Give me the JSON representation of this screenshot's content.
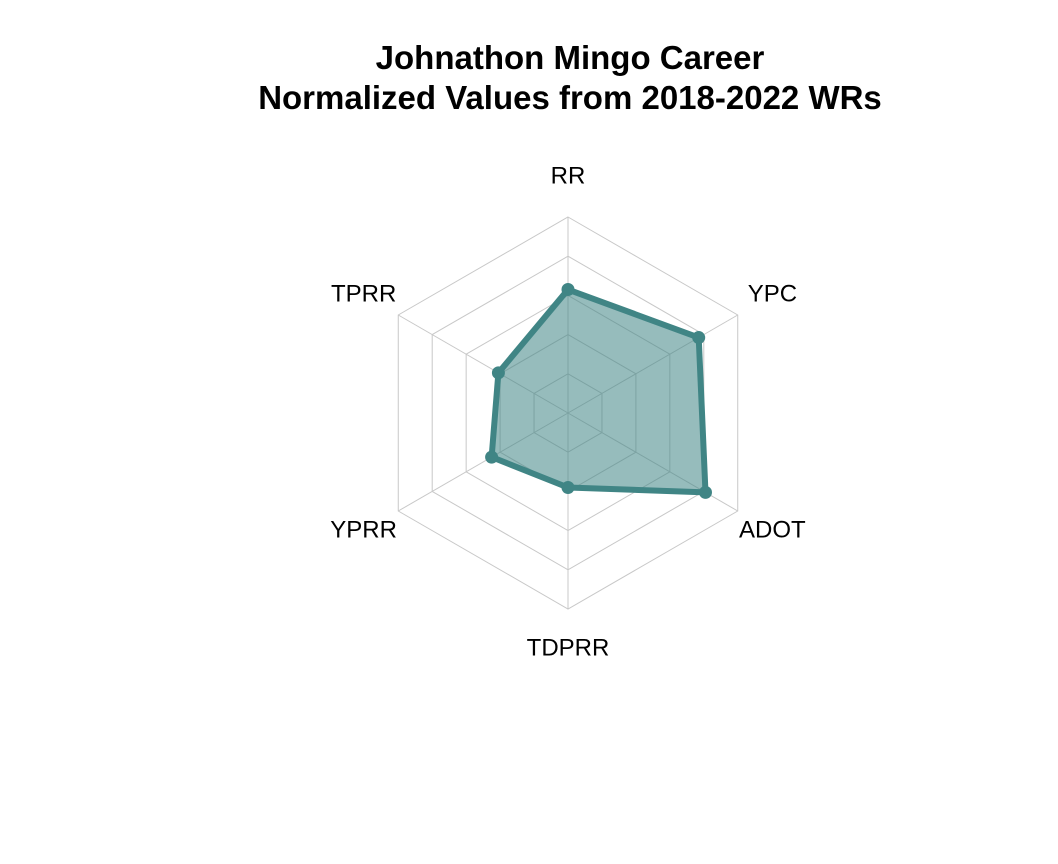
{
  "chart_data": {
    "type": "radar",
    "title_lines": [
      "Johnathon Mingo Career",
      "Normalized Values from 2018-2022 WRs"
    ],
    "axes": [
      "RR",
      "YPC",
      "ADOT",
      "TDPRR",
      "YPRR",
      "TPRR"
    ],
    "values": [
      0.63,
      0.77,
      0.81,
      0.38,
      0.45,
      0.41
    ],
    "rlim": [
      0,
      1
    ],
    "grid_rings": 5,
    "grid": true,
    "legend": "none",
    "colors": {
      "line": "#408585",
      "fill": "#408585",
      "fill_opacity": 0.55,
      "grid": "#c8c8c8"
    }
  }
}
